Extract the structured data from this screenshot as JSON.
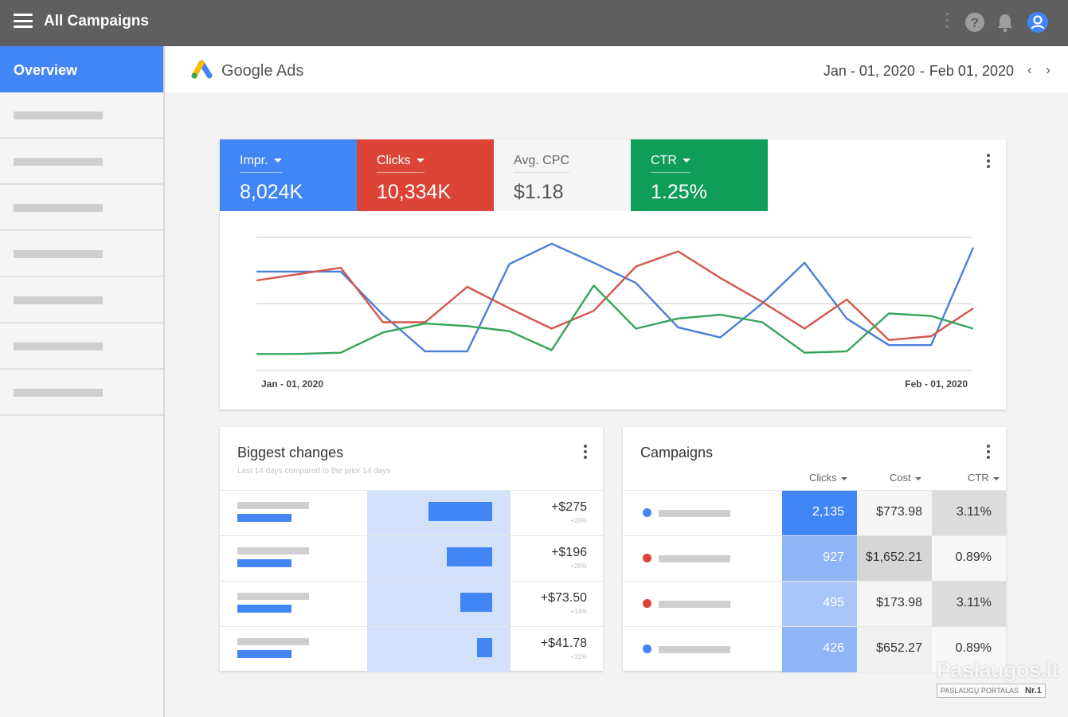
{
  "topbar": {
    "title": "All Campaigns"
  },
  "sidebar": {
    "active_label": "Overview",
    "placeholder_items": 7
  },
  "header": {
    "logo_text": "Google Ads",
    "date_start": "Jan - 01, 2020",
    "date_sep": "-",
    "date_end": "Feb 01, 2020",
    "prev_arrow": "‹",
    "next_arrow": "›"
  },
  "metrics": [
    {
      "label": "Impr.",
      "value": "8,024K",
      "color": "#4285f4",
      "dropdown": true
    },
    {
      "label": "Clicks",
      "value": "10,334K",
      "color": "#db4437",
      "dropdown": true
    },
    {
      "label": "Avg. CPC",
      "value": "$1.18",
      "color": "#f5f5f5",
      "dropdown": false
    },
    {
      "label": "CTR",
      "value": "1.25%",
      "color": "#0f9d58",
      "dropdown": true
    }
  ],
  "chart_data": {
    "type": "line",
    "x_start_label": "Jan - 01, 2020",
    "x_end_label": "Feb - 01, 2020",
    "series": [
      {
        "color": "#4a7fd8",
        "values": [
          78,
          78,
          78,
          44,
          15,
          15,
          84,
          100,
          85,
          69,
          34,
          26,
          53,
          85,
          41,
          20,
          20,
          97
        ]
      },
      {
        "color": "#d6564a",
        "values": [
          71,
          76,
          81,
          38,
          38,
          66,
          49,
          33,
          47,
          82,
          94,
          73,
          54,
          33,
          56,
          24,
          27,
          49
        ]
      },
      {
        "color": "#34a45a",
        "values": [
          13,
          13,
          14,
          30,
          37,
          35,
          31,
          16,
          67,
          33,
          41,
          44,
          38,
          14,
          15,
          45,
          43,
          33
        ]
      }
    ],
    "ylim": [
      0,
      110
    ]
  },
  "biggest_changes": {
    "title": "Biggest changes",
    "subtitle": "Last 14 days compared to the prior 14 days",
    "rows": [
      {
        "value": "+$275",
        "pct": "+20%",
        "bar_fraction": 1.0
      },
      {
        "value": "+$196",
        "pct": "+26%",
        "bar_fraction": 0.71
      },
      {
        "value": "+$73.50",
        "pct": "+14%",
        "bar_fraction": 0.5
      },
      {
        "value": "+$41.78",
        "pct": "+31%",
        "bar_fraction": 0.24
      }
    ]
  },
  "campaigns": {
    "title": "Campaigns",
    "columns": {
      "clicks": "Clicks",
      "cost": "Cost",
      "ctr": "CTR"
    },
    "rows": [
      {
        "dot": "#4285f4",
        "clicks": "2,135",
        "cost": "$773.98",
        "ctr": "3.11%",
        "clicks_bg": "#4285f4",
        "cost_bg": "#f5f5f5",
        "ctr_bg": "#dcdcdc"
      },
      {
        "dot": "#db4437",
        "clicks": "927",
        "cost": "$1,652.21",
        "ctr": "0.89%",
        "clicks_bg": "#8fb5f6",
        "cost_bg": "#d6d6d6",
        "ctr_bg": "#f7f7f7"
      },
      {
        "dot": "#db4437",
        "clicks": "495",
        "cost": "$173.98",
        "ctr": "3.11%",
        "clicks_bg": "#a9c6f8",
        "cost_bg": "#f5f5f5",
        "ctr_bg": "#dcdcdc"
      },
      {
        "dot": "#4285f4",
        "clicks": "426",
        "cost": "$652.27",
        "ctr": "0.89%",
        "clicks_bg": "#8fb5f6",
        "cost_bg": "#f0f0f0",
        "ctr_bg": "#f7f7f7"
      }
    ]
  },
  "watermark": {
    "main": "Paslaugos.lt",
    "sub": "PASLAUGŲ PORTALAS",
    "badge": "Nr.1"
  }
}
